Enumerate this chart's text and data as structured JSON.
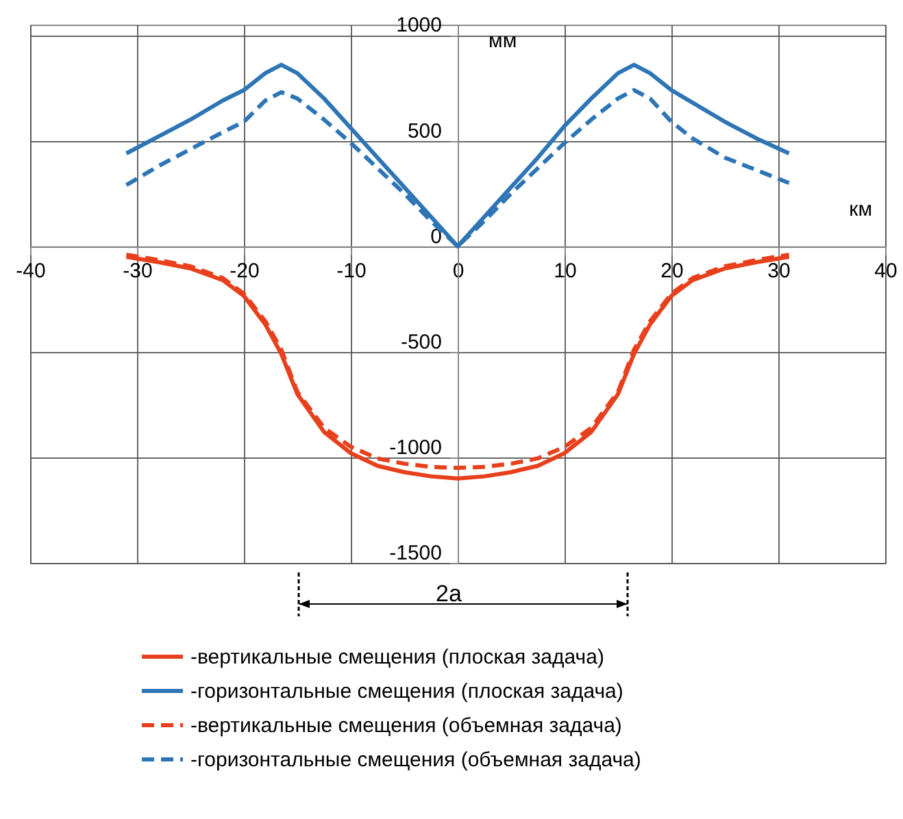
{
  "chart_data": {
    "type": "line",
    "xlabel": "км",
    "ylabel": "мм",
    "x": [
      -31,
      -28,
      -25,
      -22,
      -20,
      -18,
      -16.5,
      -15,
      -12.5,
      -10,
      -7.5,
      -5,
      -2.5,
      0,
      2.5,
      5,
      7.5,
      10,
      12.5,
      15,
      16.5,
      18,
      20,
      22,
      25,
      28,
      31
    ],
    "series": [
      {
        "name": "-вертикальные смещения (плоская задача)",
        "color": "#e8401c",
        "line_style": "solid",
        "values": [
          -50,
          -75,
          -105,
          -160,
          -235,
          -370,
          -510,
          -700,
          -880,
          -980,
          -1040,
          -1070,
          -1090,
          -1100,
          -1090,
          -1070,
          -1040,
          -980,
          -880,
          -700,
          -510,
          -370,
          -235,
          -160,
          -105,
          -75,
          -50
        ]
      },
      {
        "name": "-горизонтальные смещения (плоская задача)",
        "color": "#2e75b6",
        "line_style": "solid",
        "values": [
          440,
          520,
          600,
          690,
          740,
          820,
          860,
          820,
          700,
          560,
          420,
          280,
          140,
          0,
          140,
          280,
          420,
          570,
          700,
          820,
          860,
          820,
          740,
          680,
          590,
          510,
          440
        ]
      },
      {
        "name": "-вертикальные смещения (объемная задача)",
        "color": "#e8401c",
        "line_style": "dashed",
        "values": [
          -40,
          -65,
          -95,
          -150,
          -225,
          -355,
          -490,
          -690,
          -860,
          -950,
          -1005,
          -1030,
          -1045,
          -1050,
          -1045,
          -1030,
          -1005,
          -950,
          -860,
          -690,
          -490,
          -355,
          -225,
          -150,
          -95,
          -65,
          -40
        ]
      },
      {
        "name": "-горизонтальные смещения (объемная задача)",
        "color": "#2e75b6",
        "line_style": "dashed",
        "values": [
          290,
          380,
          460,
          540,
          590,
          690,
          730,
          700,
          600,
          490,
          370,
          250,
          120,
          0,
          120,
          250,
          370,
          490,
          600,
          700,
          740,
          700,
          590,
          510,
          420,
          360,
          300
        ]
      }
    ],
    "xlim": [
      -40,
      40
    ],
    "xticks": [
      -40,
      -30,
      -20,
      -10,
      0,
      10,
      20,
      30,
      40
    ],
    "ylim": [
      -1500,
      1050
    ],
    "yticks": [
      -1500,
      -1000,
      -500,
      0,
      500,
      1000
    ],
    "grid": true,
    "legend": "bottom",
    "marker": "none",
    "annotations": [
      "2а"
    ]
  }
}
